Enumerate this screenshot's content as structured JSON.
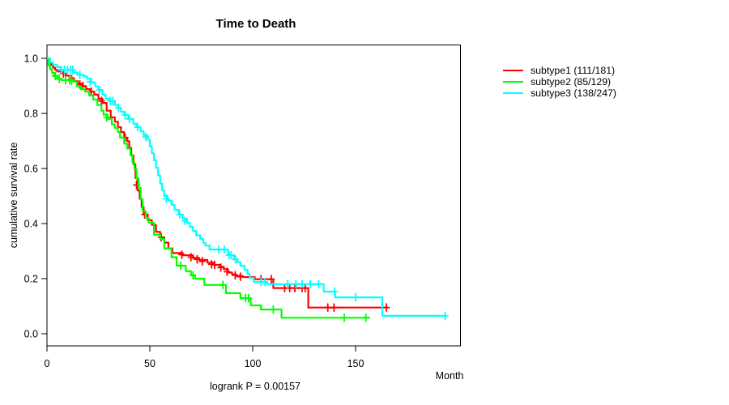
{
  "title": "Time to Death",
  "y_axis": {
    "label": "cumulative survival rate",
    "ticks": [
      "0.0",
      "0.2",
      "0.4",
      "0.6",
      "0.8",
      "1.0"
    ],
    "tick_values": [
      0,
      0.2,
      0.4,
      0.6,
      0.8,
      1.0
    ],
    "range": [
      0,
      1
    ]
  },
  "x_axis": {
    "label": "Month",
    "ticks": [
      "0",
      "50",
      "100",
      "150"
    ],
    "tick_values": [
      0,
      50,
      100,
      150
    ],
    "range": [
      0,
      200
    ]
  },
  "footnote": "logrank P = 0.00157",
  "legend": {
    "entries": [
      {
        "label": "subtype1 (111/181)",
        "color": "#FF0000"
      },
      {
        "label": "subtype2 (85/129)",
        "color": "#00FF00"
      },
      {
        "label": "subtype3 (138/247)",
        "color": "#00FFFF"
      }
    ]
  },
  "chart_data": {
    "type": "line",
    "variant": "kaplan-meier-step",
    "title": "Time to Death",
    "xlabel": "Month",
    "ylabel": "cumulative survival rate",
    "xlim": [
      0,
      200
    ],
    "ylim": [
      0,
      1
    ],
    "grid": false,
    "legend_position": "right-outside",
    "series": [
      {
        "name": "subtype1",
        "events": 111,
        "n": 181,
        "color": "#FF0000",
        "end_time": 165,
        "points": [
          [
            0,
            1.0
          ],
          [
            1,
            0.985
          ],
          [
            2,
            0.975
          ],
          [
            3,
            0.966
          ],
          [
            4,
            0.958
          ],
          [
            5,
            0.952
          ],
          [
            7,
            0.945
          ],
          [
            9,
            0.937
          ],
          [
            11,
            0.928
          ],
          [
            13,
            0.917
          ],
          [
            15,
            0.908
          ],
          [
            17,
            0.899
          ],
          [
            19,
            0.888
          ],
          [
            21,
            0.879
          ],
          [
            23,
            0.868
          ],
          [
            25,
            0.853
          ],
          [
            27,
            0.838
          ],
          [
            29,
            0.81
          ],
          [
            31,
            0.786
          ],
          [
            33,
            0.77
          ],
          [
            34.5,
            0.75
          ],
          [
            36,
            0.732
          ],
          [
            37.5,
            0.712
          ],
          [
            39,
            0.699
          ],
          [
            40,
            0.675
          ],
          [
            41,
            0.648
          ],
          [
            42,
            0.615
          ],
          [
            43,
            0.565
          ],
          [
            44,
            0.52
          ],
          [
            45,
            0.49
          ],
          [
            46,
            0.46
          ],
          [
            47,
            0.433
          ],
          [
            49,
            0.412
          ],
          [
            51,
            0.395
          ],
          [
            53,
            0.37
          ],
          [
            55,
            0.35
          ],
          [
            57,
            0.331
          ],
          [
            59,
            0.31
          ],
          [
            61,
            0.293
          ],
          [
            66,
            0.285
          ],
          [
            71,
            0.275
          ],
          [
            74,
            0.268
          ],
          [
            78,
            0.258
          ],
          [
            81,
            0.25
          ],
          [
            84,
            0.243
          ],
          [
            86,
            0.234
          ],
          [
            88,
            0.222
          ],
          [
            90,
            0.215
          ],
          [
            92,
            0.21
          ],
          [
            95,
            0.206
          ],
          [
            101,
            0.198
          ],
          [
            110,
            0.166
          ],
          [
            127,
            0.095
          ]
        ],
        "censors": [
          [
            8,
            0.945
          ],
          [
            12,
            0.925
          ],
          [
            16,
            0.905
          ],
          [
            17.5,
            0.899
          ],
          [
            21.5,
            0.879
          ],
          [
            26.5,
            0.845
          ],
          [
            38,
            0.712
          ],
          [
            43.5,
            0.54
          ],
          [
            47.5,
            0.433
          ],
          [
            55.5,
            0.35
          ],
          [
            65.5,
            0.287
          ],
          [
            70,
            0.278
          ],
          [
            73,
            0.27
          ],
          [
            75.5,
            0.263
          ],
          [
            80,
            0.252
          ],
          [
            81.5,
            0.25
          ],
          [
            84.5,
            0.24
          ],
          [
            87.5,
            0.225
          ],
          [
            91.5,
            0.212
          ],
          [
            94,
            0.207
          ],
          [
            104,
            0.198
          ],
          [
            109,
            0.198
          ],
          [
            115.5,
            0.166
          ],
          [
            118,
            0.166
          ],
          [
            120.5,
            0.166
          ],
          [
            124,
            0.166
          ],
          [
            125.5,
            0.166
          ],
          [
            136.5,
            0.095
          ],
          [
            139.5,
            0.095
          ],
          [
            165,
            0.095
          ]
        ]
      },
      {
        "name": "subtype2",
        "events": 85,
        "n": 129,
        "color": "#00FF00",
        "end_time": 157,
        "points": [
          [
            0,
            1.0
          ],
          [
            0.7,
            0.975
          ],
          [
            1.5,
            0.96
          ],
          [
            2.5,
            0.947
          ],
          [
            3.5,
            0.936
          ],
          [
            5,
            0.926
          ],
          [
            7,
            0.921
          ],
          [
            13,
            0.915
          ],
          [
            14.5,
            0.898
          ],
          [
            16.5,
            0.888
          ],
          [
            18.5,
            0.879
          ],
          [
            20.5,
            0.865
          ],
          [
            22.5,
            0.85
          ],
          [
            24.5,
            0.83
          ],
          [
            26.5,
            0.81
          ],
          [
            27.5,
            0.795
          ],
          [
            29.5,
            0.78
          ],
          [
            31.5,
            0.76
          ],
          [
            33,
            0.747
          ],
          [
            34.5,
            0.732
          ],
          [
            35.5,
            0.712
          ],
          [
            37.5,
            0.69
          ],
          [
            39,
            0.672
          ],
          [
            40.5,
            0.648
          ],
          [
            41.5,
            0.624
          ],
          [
            42.5,
            0.598
          ],
          [
            43.5,
            0.565
          ],
          [
            44.5,
            0.53
          ],
          [
            45.5,
            0.488
          ],
          [
            46.5,
            0.445
          ],
          [
            48,
            0.42
          ],
          [
            49.5,
            0.403
          ],
          [
            52,
            0.36
          ],
          [
            55,
            0.344
          ],
          [
            57,
            0.31
          ],
          [
            60.5,
            0.278
          ],
          [
            63,
            0.247
          ],
          [
            67.5,
            0.227
          ],
          [
            70,
            0.212
          ],
          [
            72,
            0.2
          ],
          [
            76.5,
            0.177
          ],
          [
            87,
            0.147
          ],
          [
            94,
            0.129
          ],
          [
            99,
            0.103
          ],
          [
            104,
            0.088
          ],
          [
            114,
            0.058
          ]
        ],
        "censors": [
          [
            4,
            0.936
          ],
          [
            6,
            0.926
          ],
          [
            9,
            0.921
          ],
          [
            11,
            0.921
          ],
          [
            12,
            0.918
          ],
          [
            29,
            0.785
          ],
          [
            65,
            0.247
          ],
          [
            71,
            0.212
          ],
          [
            85.5,
            0.177
          ],
          [
            96.5,
            0.129
          ],
          [
            98,
            0.129
          ],
          [
            110,
            0.088
          ],
          [
            144.5,
            0.058
          ],
          [
            155,
            0.058
          ]
        ]
      },
      {
        "name": "subtype3",
        "events": 138,
        "n": 247,
        "color": "#00FFFF",
        "end_time": 194,
        "points": [
          [
            0,
            1.0
          ],
          [
            1.5,
            0.985
          ],
          [
            3,
            0.976
          ],
          [
            5,
            0.968
          ],
          [
            6.5,
            0.958
          ],
          [
            13,
            0.947
          ],
          [
            15,
            0.94
          ],
          [
            18,
            0.934
          ],
          [
            19.5,
            0.926
          ],
          [
            21.5,
            0.912
          ],
          [
            23.5,
            0.898
          ],
          [
            25,
            0.885
          ],
          [
            27,
            0.868
          ],
          [
            28.5,
            0.853
          ],
          [
            30.5,
            0.845
          ],
          [
            33,
            0.83
          ],
          [
            34.5,
            0.82
          ],
          [
            36,
            0.806
          ],
          [
            37.5,
            0.794
          ],
          [
            39.5,
            0.78
          ],
          [
            42,
            0.762
          ],
          [
            43.5,
            0.75
          ],
          [
            45.5,
            0.735
          ],
          [
            47,
            0.72
          ],
          [
            49,
            0.705
          ],
          [
            50,
            0.68
          ],
          [
            51,
            0.655
          ],
          [
            52,
            0.63
          ],
          [
            53,
            0.603
          ],
          [
            54,
            0.575
          ],
          [
            55,
            0.545
          ],
          [
            56,
            0.52
          ],
          [
            57,
            0.5
          ],
          [
            58.5,
            0.484
          ],
          [
            60.5,
            0.468
          ],
          [
            62,
            0.45
          ],
          [
            64,
            0.433
          ],
          [
            66,
            0.418
          ],
          [
            68,
            0.403
          ],
          [
            69.5,
            0.388
          ],
          [
            71,
            0.373
          ],
          [
            72.5,
            0.357
          ],
          [
            74.5,
            0.344
          ],
          [
            76,
            0.33
          ],
          [
            77,
            0.32
          ],
          [
            79,
            0.306
          ],
          [
            88,
            0.285
          ],
          [
            91,
            0.27
          ],
          [
            92.5,
            0.26
          ],
          [
            94,
            0.247
          ],
          [
            96,
            0.232
          ],
          [
            97.5,
            0.217
          ],
          [
            98.5,
            0.203
          ],
          [
            100.5,
            0.188
          ],
          [
            107,
            0.18
          ],
          [
            134.5,
            0.153
          ],
          [
            140,
            0.132
          ],
          [
            163,
            0.065
          ]
        ],
        "censors": [
          [
            7,
            0.958
          ],
          [
            8.5,
            0.958
          ],
          [
            10,
            0.958
          ],
          [
            11.5,
            0.958
          ],
          [
            12.5,
            0.958
          ],
          [
            16,
            0.94
          ],
          [
            21,
            0.914
          ],
          [
            25.5,
            0.885
          ],
          [
            30.8,
            0.845
          ],
          [
            32,
            0.845
          ],
          [
            34.8,
            0.82
          ],
          [
            38,
            0.794
          ],
          [
            40,
            0.78
          ],
          [
            44,
            0.75
          ],
          [
            48,
            0.714
          ],
          [
            58,
            0.49
          ],
          [
            64.5,
            0.433
          ],
          [
            67,
            0.41
          ],
          [
            83.5,
            0.306
          ],
          [
            86.2,
            0.306
          ],
          [
            88.5,
            0.285
          ],
          [
            89.5,
            0.285
          ],
          [
            91.6,
            0.27
          ],
          [
            104,
            0.188
          ],
          [
            106,
            0.188
          ],
          [
            117,
            0.18
          ],
          [
            121,
            0.18
          ],
          [
            124,
            0.18
          ],
          [
            128,
            0.18
          ],
          [
            132,
            0.18
          ],
          [
            139.8,
            0.153
          ],
          [
            150,
            0.132
          ],
          [
            193.5,
            0.065
          ]
        ]
      }
    ]
  }
}
